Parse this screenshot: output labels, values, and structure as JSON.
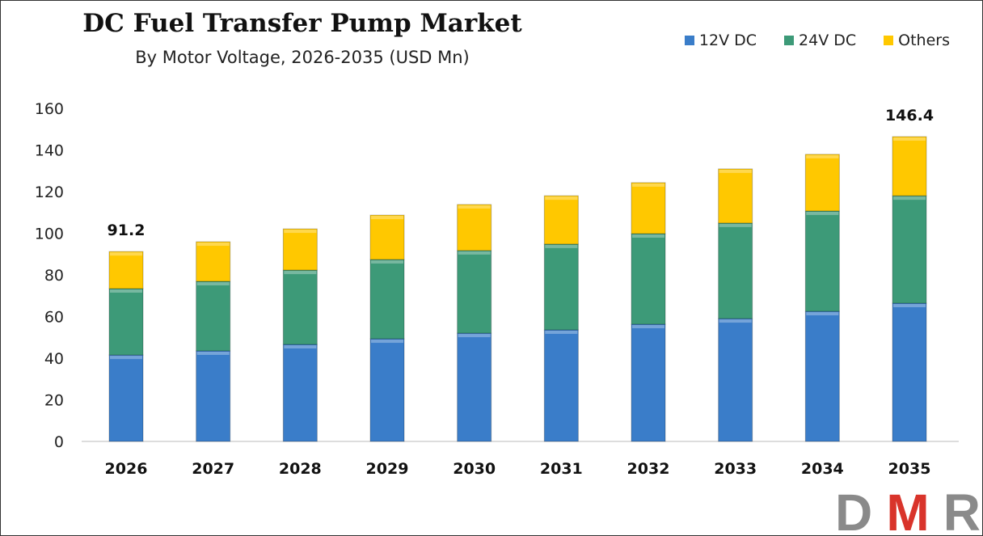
{
  "chart_data": {
    "type": "bar",
    "stacked": true,
    "title": "DC Fuel Transfer Pump Market",
    "subtitle": "By Motor Voltage, 2026-2035 (USD Mn)",
    "xlabel": "",
    "ylabel": "",
    "ylim": [
      0,
      160
    ],
    "yticks": [
      0,
      20,
      40,
      60,
      80,
      100,
      120,
      140,
      160
    ],
    "grid": false,
    "legend_position": "top-right",
    "categories": [
      "2026",
      "2027",
      "2028",
      "2029",
      "2030",
      "2031",
      "2032",
      "2033",
      "2034",
      "2035"
    ],
    "series": [
      {
        "name": "12V DC",
        "color": "#3a7dc9",
        "values": [
          41.5,
          43.5,
          46.6,
          49.3,
          52.0,
          53.6,
          56.3,
          59.0,
          62.5,
          66.4
        ]
      },
      {
        "name": "24V DC",
        "color": "#3d9a78",
        "values": [
          31.9,
          33.4,
          35.7,
          38.1,
          39.7,
          41.2,
          43.5,
          45.9,
          48.2,
          51.6
        ]
      },
      {
        "name": "Others",
        "color": "#ffc800",
        "values": [
          17.8,
          19.0,
          19.8,
          21.3,
          22.1,
          23.2,
          24.5,
          26.0,
          27.2,
          28.4
        ]
      }
    ],
    "annotations": [
      {
        "category": "2026",
        "text": "91.2"
      },
      {
        "category": "2035",
        "text": "146.4"
      }
    ]
  },
  "logo": {
    "text": "DMR"
  }
}
